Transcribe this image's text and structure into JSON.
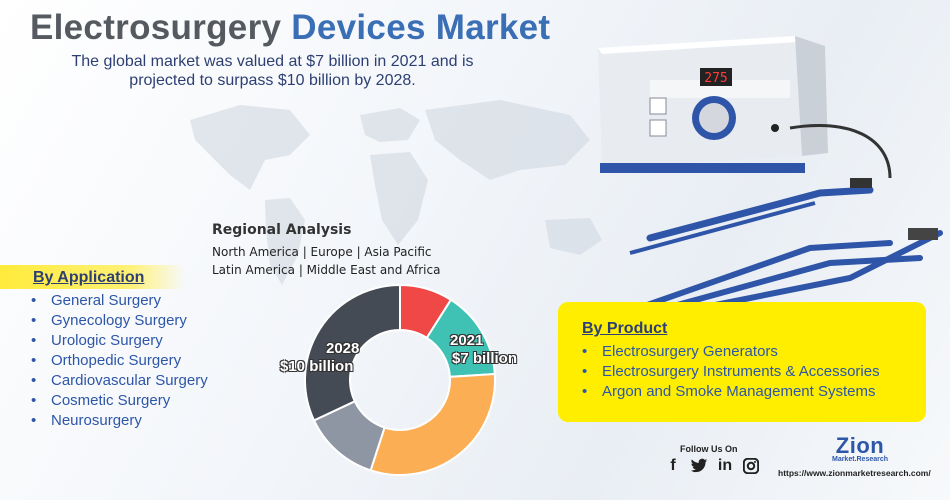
{
  "header": {
    "title_part1": "Electrosurgery",
    "title_part2": "Devices Market",
    "subtitle": "The global market was valued at $7 billion in 2021 and is projected to surpass $10 billion by 2028."
  },
  "regional": {
    "title": "Regional Analysis",
    "line1": "North America | Europe | Asia Pacific",
    "line2": "Latin America | Middle East and Africa"
  },
  "application": {
    "heading": "By Application",
    "items": [
      "General Surgery",
      "Gynecology Surgery",
      "Urologic Surgery",
      "Orthopedic Surgery",
      "Cardiovascular Surgery",
      "Cosmetic Surgery",
      "Neurosurgery"
    ]
  },
  "donut": {
    "label_2028_year": "2028",
    "label_2028_value": "$10 billion",
    "label_2021_year": "2021",
    "label_2021_value": "$7 billion",
    "segments": [
      {
        "fraction": 0.09,
        "color": "#f04747"
      },
      {
        "fraction": 0.15,
        "color": "#3fc1b4"
      },
      {
        "fraction": 0.31,
        "color": "#fbae54"
      },
      {
        "fraction": 0.13,
        "color": "#8e96a3"
      },
      {
        "fraction": 0.32,
        "color": "#454b55"
      }
    ]
  },
  "product": {
    "heading": "By Product",
    "items": [
      "Electrosurgery Generators",
      "Electrosurgery Instruments & Accessories",
      "Argon and Smoke Management Systems"
    ]
  },
  "footer": {
    "follow": "Follow Us On",
    "social_icons": [
      "facebook-icon",
      "twitter-icon",
      "linkedin-icon",
      "instagram-icon"
    ],
    "logo_text": "Zion",
    "logo_sub": "Market.Research",
    "url": "https://www.zionmarketresearch.com/"
  },
  "device": {
    "display": "275"
  },
  "colors": {
    "accent_blue": "#3a6fb5",
    "highlight_yellow": "#ffee00",
    "text_navy": "#2d3f73"
  }
}
